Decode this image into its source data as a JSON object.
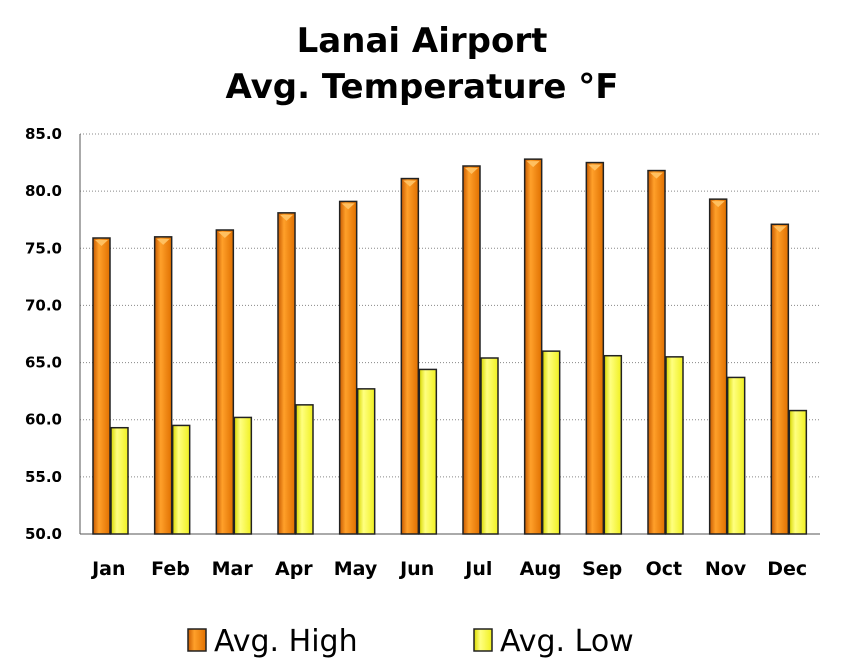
{
  "chart_data": {
    "type": "bar",
    "title": "Lanai Airport",
    "subtitle": "Avg. Temperature °F",
    "categories": [
      "Jan",
      "Feb",
      "Mar",
      "Apr",
      "May",
      "Jun",
      "Jul",
      "Aug",
      "Sep",
      "Oct",
      "Nov",
      "Dec"
    ],
    "series": [
      {
        "name": "Avg. High",
        "values": [
          75.9,
          76.0,
          76.6,
          78.1,
          79.1,
          81.1,
          82.2,
          82.8,
          82.5,
          81.8,
          79.3,
          77.1
        ],
        "color": "#f08000"
      },
      {
        "name": "Avg. Low",
        "values": [
          59.3,
          59.5,
          60.2,
          61.3,
          62.7,
          64.4,
          65.4,
          66.0,
          65.6,
          65.5,
          63.7,
          60.8
        ],
        "color": "#ffff33"
      }
    ],
    "ylim": [
      50,
      85
    ],
    "yticks": [
      "50.0",
      "55.0",
      "60.0",
      "65.0",
      "70.0",
      "75.0",
      "80.0",
      "85.0"
    ],
    "grid": true,
    "legend_position": "bottom"
  }
}
